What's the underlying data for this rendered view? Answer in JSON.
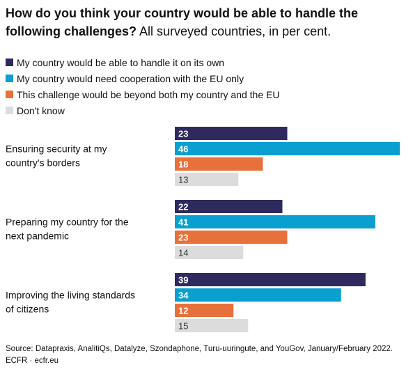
{
  "header": {
    "title_bold": "How do you think your country would be able to handle the following challenges?",
    "title_rest": " All surveyed countries, in per cent."
  },
  "legend": [
    {
      "label": "My country would be able to handle it on its own",
      "color": "#2f2a5e"
    },
    {
      "label": "My country would need cooperation with the EU only",
      "color": "#0a9fd1"
    },
    {
      "label": "This challenge would be beyond both my country and the EU",
      "color": "#e8703a"
    },
    {
      "label": "Don't know",
      "color": "#dcdcdc"
    }
  ],
  "chart_data": {
    "type": "bar",
    "orientation": "horizontal",
    "categories": [
      "Ensuring security at my country's borders",
      "Preparing my country for the next pandemic",
      "Improving the living standards of citizens"
    ],
    "series": [
      {
        "name": "My country would be able to handle it on its own",
        "values": [
          23,
          22,
          39
        ],
        "color": "#2f2a5e",
        "label_color": "#ffffff"
      },
      {
        "name": "My country would need cooperation with the EU only",
        "values": [
          46,
          41,
          34
        ],
        "color": "#0a9fd1",
        "label_color": "#ffffff"
      },
      {
        "name": "This challenge would be beyond both my country and the EU",
        "values": [
          18,
          23,
          12
        ],
        "color": "#e8703a",
        "label_color": "#ffffff"
      },
      {
        "name": "Don't know",
        "values": [
          13,
          14,
          15
        ],
        "color": "#dcdcdc",
        "label_color": "#333333"
      }
    ],
    "xlim": [
      0,
      46
    ],
    "grid": false,
    "legend_position": "top-left"
  },
  "footer": {
    "source": "Source: Datapraxis, AnalitiQs, Datalyze, Szondaphone, Turu-uuringute, and YouGov, January/February 2022.",
    "credit": "ECFR · ecfr.eu"
  }
}
